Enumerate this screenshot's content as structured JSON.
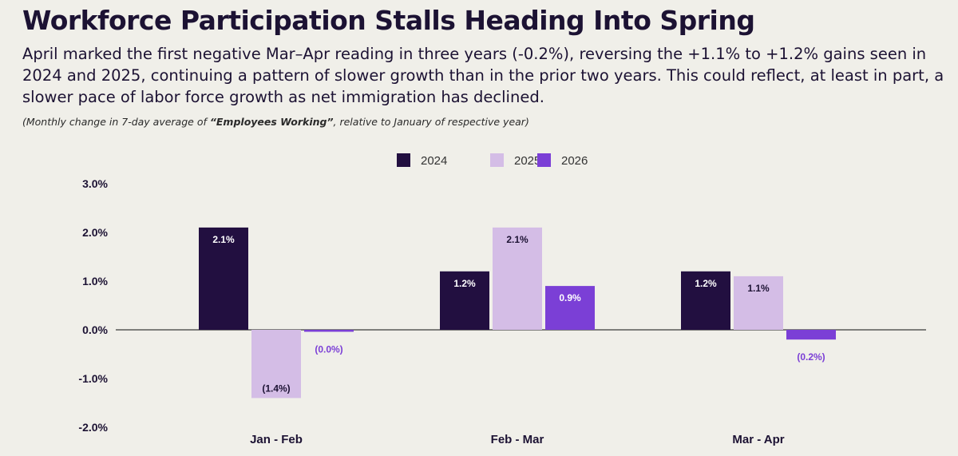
{
  "header": {
    "title": "Workforce Participation Stalls Heading Into Spring",
    "subtitle": "April marked the first negative Mar–Apr reading in three years (-0.2%), reversing the +1.1% to +1.2% gains seen in 2024 and 2025, continuing a pattern of slower growth than in the prior two years.  This could reflect, at least in part, a slower pace of labor force growth as net immigration has declined.",
    "note_prefix": "(Monthly change in 7-day average of ",
    "note_bold": "“Employees Working”",
    "note_suffix": ", relative to January of respective year)"
  },
  "chart_data": {
    "type": "bar",
    "categories": [
      "Jan - Feb",
      "Feb - Mar",
      "Mar - Apr"
    ],
    "series": [
      {
        "name": "2024",
        "values": [
          2.1,
          1.2,
          1.2
        ],
        "labels": [
          "2.1%",
          "1.2%",
          "1.2%"
        ],
        "color": "#220f40"
      },
      {
        "name": "2025",
        "values": [
          -1.4,
          2.1,
          1.1
        ],
        "labels": [
          "(1.4%)",
          "2.1%",
          "1.1%"
        ],
        "color": "#d4bde6"
      },
      {
        "name": "2026",
        "values": [
          -0.04,
          0.9,
          -0.2
        ],
        "labels": [
          "(0.0%)",
          "0.9%",
          "(0.2%)"
        ],
        "color": "#7b3fd6"
      }
    ],
    "yticks": [
      "3.0%",
      "2.0%",
      "1.0%",
      "0.0%",
      "-1.0%",
      "-2.0%"
    ],
    "ylim": [
      -2,
      3
    ],
    "legend_position": "top-center"
  }
}
